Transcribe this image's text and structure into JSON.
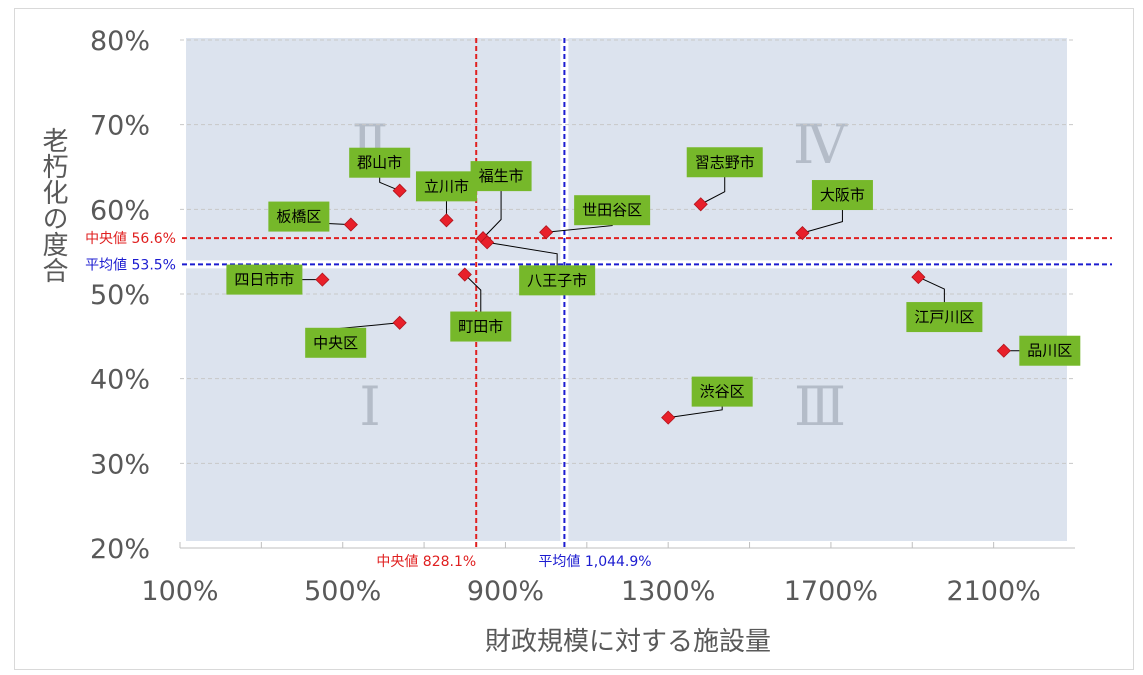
{
  "chart_data": {
    "type": "scatter",
    "xlabel": "財政規模に対する施設量",
    "ylabel": "老朽化の度合",
    "x_ticks": [
      "100%",
      "500%",
      "900%",
      "1300%",
      "1700%",
      "2100%"
    ],
    "y_ticks": [
      "20%",
      "30%",
      "40%",
      "50%",
      "60%",
      "70%",
      "80%"
    ],
    "xlim": [
      100,
      2300
    ],
    "ylim": [
      20,
      80
    ],
    "quadrants": [
      "Ⅰ",
      "Ⅱ",
      "Ⅲ",
      "Ⅳ"
    ],
    "reference_lines": {
      "x_median": {
        "value": 828.1,
        "label": "中央値 828.1%",
        "color": "#e02020"
      },
      "x_mean": {
        "value": 1044.9,
        "label": "平均値 1,044.9%",
        "color": "#1c1cd0"
      },
      "y_median": {
        "value": 56.6,
        "label": "中央値 56.6%",
        "color": "#e02020"
      },
      "y_mean": {
        "value": 53.5,
        "label": "平均値 53.5%",
        "color": "#1c1cd0"
      }
    },
    "points": [
      {
        "name": "郡山市",
        "x": 640,
        "y": 62.2
      },
      {
        "name": "立川市",
        "x": 755,
        "y": 58.7
      },
      {
        "name": "福生市",
        "x": 845,
        "y": 56.6
      },
      {
        "name": "八王子市",
        "x": 855,
        "y": 56.1
      },
      {
        "name": "板橋区",
        "x": 520,
        "y": 58.2
      },
      {
        "name": "世田谷区",
        "x": 1000,
        "y": 57.3
      },
      {
        "name": "習志野市",
        "x": 1380,
        "y": 60.6
      },
      {
        "name": "大阪市",
        "x": 1630,
        "y": 57.2
      },
      {
        "name": "四日市市",
        "x": 450,
        "y": 51.7
      },
      {
        "name": "町田市",
        "x": 800,
        "y": 52.3
      },
      {
        "name": "中央区",
        "x": 640,
        "y": 46.6
      },
      {
        "name": "江戸川区",
        "x": 1915,
        "y": 52.0
      },
      {
        "name": "品川区",
        "x": 2125,
        "y": 43.3
      },
      {
        "name": "渋谷区",
        "x": 1300,
        "y": 35.4
      }
    ],
    "colors": {
      "marker": "#e8202a",
      "label_bg": "#76b82a",
      "quadrant_fill": "#dce3ee",
      "grid": "#c8c8c8",
      "text": "#595959"
    }
  }
}
